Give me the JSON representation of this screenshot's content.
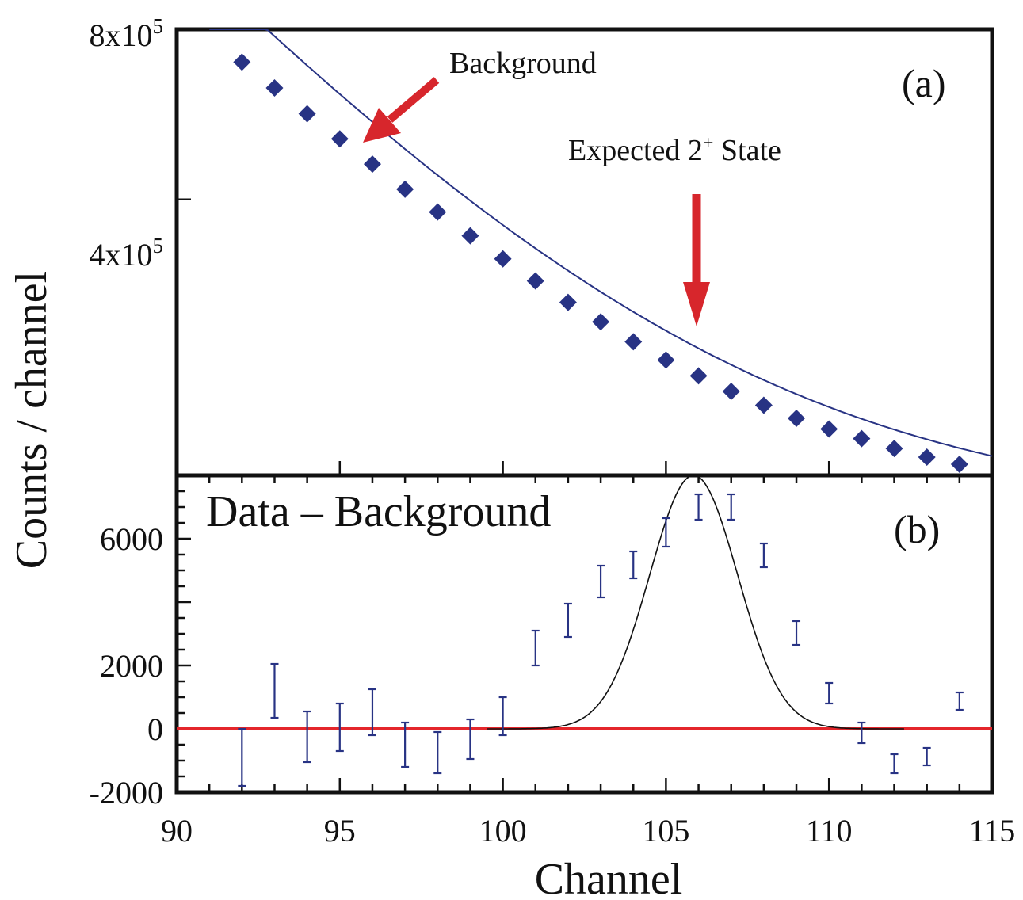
{
  "colors": {
    "marker": "#283384",
    "fit_a": "#283384",
    "errorbar": "#283384",
    "fit_b": "#111111",
    "arrow": "#d7262c",
    "zero_line": "#e4262b",
    "frame": "#111111"
  },
  "shared_axis": {
    "xlabel": "Channel",
    "ylabel": "Counts / channel",
    "x_tick_labels": [
      "90",
      "95",
      "100",
      "105",
      "110",
      "115"
    ]
  },
  "chart_data": [
    {
      "panel": "(a)",
      "type": "scatter",
      "yscale": "log",
      "xlim": [
        90,
        115
      ],
      "ylim": [
        130000,
        800000
      ],
      "y_tick_labels": [
        {
          "base": "8x10",
          "exp": "5",
          "value": 800000
        },
        {
          "base": "4x10",
          "exp": "5",
          "value": 400000
        }
      ],
      "x": [
        92,
        93,
        94,
        95,
        96,
        97,
        98,
        99,
        100,
        101,
        102,
        103,
        104,
        105,
        106,
        107,
        108,
        109,
        110,
        111,
        112,
        113,
        114
      ],
      "series": [
        {
          "values": [
            700000,
            630000,
            567000,
            512000,
            462000,
            417000,
            380000,
            345000,
            314000,
            287000,
            263000,
            243000,
            224000,
            208000,
            195000,
            183000,
            173000,
            164000,
            157000,
            151000,
            145000,
            140000,
            136000
          ]
        }
      ],
      "fit_curve": {
        "form": "A*exp(-x_offset/tau)+C",
        "A": 768000,
        "tau": 7.14,
        "C": 110000
      },
      "annotations": [
        {
          "text": "Background"
        },
        {
          "text_main": "Expected 2",
          "text_sup": "+",
          "text_tail": " State"
        }
      ]
    },
    {
      "panel": "(b)",
      "type": "scatter",
      "title": "Data – Background",
      "xlim": [
        90,
        115
      ],
      "ylim": [
        -2000,
        8000
      ],
      "y_tick_labels": [
        "6000",
        "2000",
        "0",
        "-2000"
      ],
      "y_ticks": [
        6000,
        2000,
        0,
        -2000
      ],
      "x": [
        92,
        93,
        94,
        95,
        96,
        97,
        98,
        99,
        100,
        101,
        102,
        103,
        104,
        105,
        106,
        107,
        108,
        109,
        110,
        111,
        112,
        113,
        114
      ],
      "errorbars": [
        {
          "low": -1800,
          "high": 0
        },
        {
          "low": 350,
          "high": 2050
        },
        {
          "low": -1050,
          "high": 550
        },
        {
          "low": -700,
          "high": 800
        },
        {
          "low": -200,
          "high": 1250
        },
        {
          "low": -1200,
          "high": 200
        },
        {
          "low": -1400,
          "high": -100
        },
        {
          "low": -950,
          "high": 300
        },
        {
          "low": -200,
          "high": 1000
        },
        {
          "low": 2000,
          "high": 3100
        },
        {
          "low": 2900,
          "high": 3950
        },
        {
          "low": 4150,
          "high": 5150
        },
        {
          "low": 4750,
          "high": 5600
        },
        {
          "low": 5750,
          "high": 6650
        },
        {
          "low": 6600,
          "high": 7400
        },
        {
          "low": 6600,
          "high": 7400
        },
        {
          "low": 5100,
          "high": 5850
        },
        {
          "low": 2650,
          "high": 3400
        },
        {
          "low": 800,
          "high": 1450
        },
        {
          "low": -450,
          "high": 200
        },
        {
          "low": -1400,
          "high": -800
        },
        {
          "low": -1150,
          "high": -600
        },
        {
          "low": 600,
          "high": 1150
        }
      ],
      "gaussian_fit": {
        "amplitude": 8000,
        "center": 105.85,
        "sigma": 1.35,
        "x_range": [
          99.5,
          112.3
        ]
      },
      "zero_line": 0
    }
  ]
}
